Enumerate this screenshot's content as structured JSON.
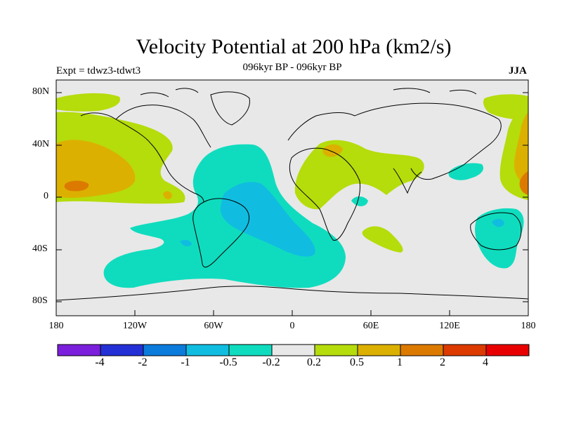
{
  "title": "Velocity Potential at 200 hPa (km2/s)",
  "subtitle": "096kyr BP - 096kyr BP",
  "experiment": "Expt = tdwz3-tdwt3",
  "season": "JJA",
  "lat_labels": [
    "80N",
    "40N",
    "0",
    "40S",
    "80S"
  ],
  "lon_labels": [
    "180",
    "120W",
    "60W",
    "0",
    "60E",
    "120E",
    "180"
  ],
  "colorbar": {
    "colors": [
      "#7b1fdc",
      "#2330d6",
      "#0b7bdc",
      "#10bde0",
      "#0fdcbe",
      "#e8e8e8",
      "#b5dc0b",
      "#dcb000",
      "#dc7a00",
      "#dc3a00",
      "#e80000"
    ],
    "labels": [
      "-4",
      "-2",
      "-1",
      "-0.5",
      "-0.2",
      "0.2",
      "0.5",
      "1",
      "2",
      "4"
    ]
  },
  "map_colors": {
    "background": "#e8e8e8",
    "neg_weak": "#0fdcbe",
    "neg_mid": "#10bde0",
    "pos_weak": "#b5dc0b",
    "pos_mid": "#dcb000",
    "pos_strong": "#dc7a00"
  }
}
